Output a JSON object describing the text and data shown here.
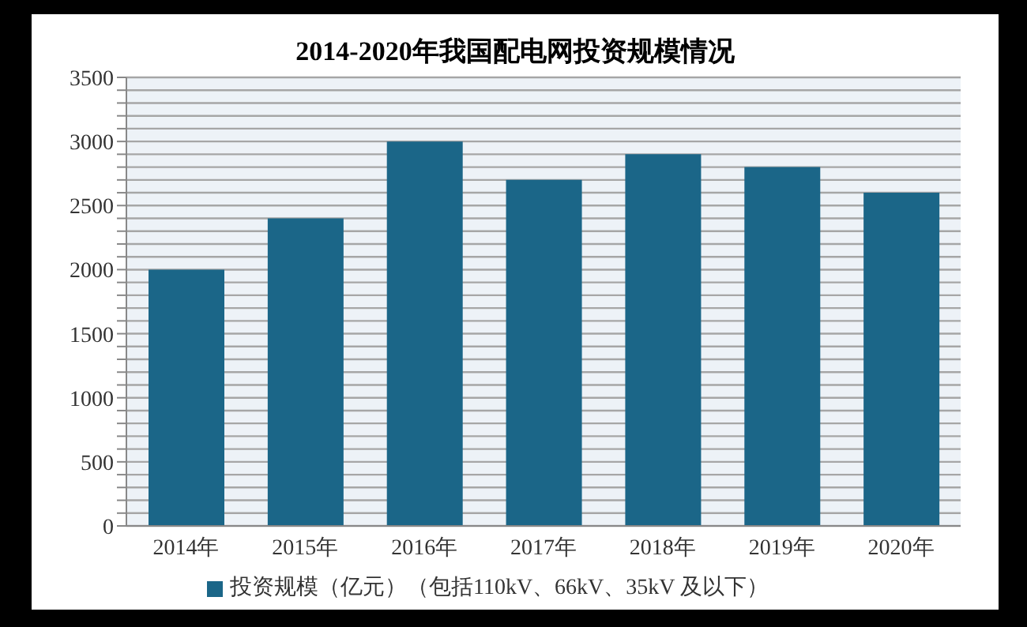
{
  "chart_data": {
    "type": "bar",
    "title": "2014-2020年我国配电网投资规模情况",
    "categories": [
      "2014年",
      "2015年",
      "2016年",
      "2017年",
      "2018年",
      "2019年",
      "2020年"
    ],
    "series": [
      {
        "name": "投资规模（亿元）（包括110kV、66kV、35kV 及以下）",
        "color": "#1b6688",
        "values": [
          2000,
          2400,
          3000,
          2700,
          2900,
          2800,
          2600
        ]
      }
    ],
    "ylim": [
      0,
      3500
    ],
    "yticks": [
      0,
      {
        "value": 100,
        "label": null
      },
      {
        "value": 200,
        "label": null
      },
      {
        "value": 300,
        "label": null
      },
      {
        "value": 400,
        "label": null
      },
      500,
      {
        "value": 600,
        "label": null
      },
      {
        "value": 700,
        "label": null
      },
      {
        "value": 800,
        "label": null
      },
      {
        "value": 900,
        "label": null
      },
      1000,
      {
        "value": 1100,
        "label": null
      },
      {
        "value": 1200,
        "label": null
      },
      {
        "value": 1300,
        "label": null
      },
      {
        "value": 1400,
        "label": null
      },
      1500,
      {
        "value": 1600,
        "label": null
      },
      {
        "value": 1700,
        "label": null
      },
      {
        "value": 1800,
        "label": null
      },
      {
        "value": 1900,
        "label": null
      },
      2000,
      {
        "value": 2100,
        "label": null
      },
      {
        "value": 2200,
        "label": null
      },
      {
        "value": 2300,
        "label": null
      },
      {
        "value": 2400,
        "label": null
      },
      2500,
      {
        "value": 2600,
        "label": null
      },
      {
        "value": 2700,
        "label": null
      },
      {
        "value": 2800,
        "label": null
      },
      {
        "value": 2900,
        "label": null
      },
      3000,
      {
        "value": 3100,
        "label": null
      },
      {
        "value": 3200,
        "label": null
      },
      {
        "value": 3300,
        "label": null
      },
      {
        "value": 3400,
        "label": null
      },
      3500
    ],
    "grid": "y",
    "legend": "bottom"
  }
}
